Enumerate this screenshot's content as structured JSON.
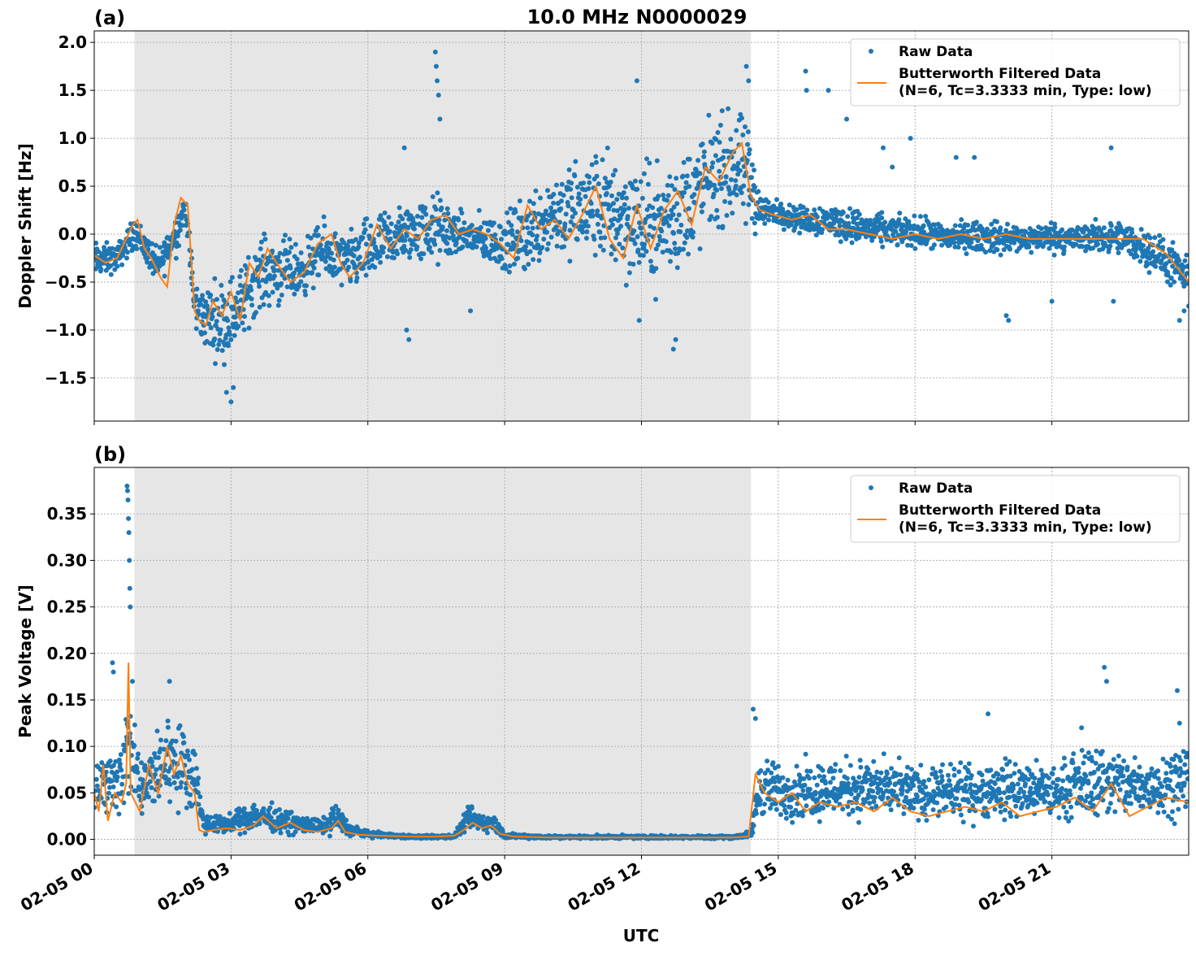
{
  "figure": {
    "title": "10.0 MHz N0000029",
    "xlabel": "UTC",
    "x_ticks": [
      "02-05 00",
      "02-05 03",
      "02-05 06",
      "02-05 09",
      "02-05 12",
      "02-05 15",
      "02-05 18",
      "02-05 21"
    ],
    "colors": {
      "raw": "#1f77b4",
      "filtered": "#ff7f0e",
      "night_shade": "#e6e6e6"
    }
  },
  "chart_data": [
    {
      "type": "scatter",
      "panel_label": "(a)",
      "ylabel": "Doppler Shift [Hz]",
      "xlim_hours": [
        0,
        24
      ],
      "ylim": [
        -1.95,
        2.12
      ],
      "y_ticks": [
        -1.5,
        -1.0,
        -0.5,
        0.0,
        0.5,
        1.0,
        1.5,
        2.0
      ],
      "y_tick_labels": [
        "−1.5",
        "−1.0",
        "−0.5",
        "0.0",
        "0.5",
        "1.0",
        "1.5",
        "2.0"
      ],
      "shaded_interval_hours": [
        0.88,
        14.4
      ],
      "grid": true,
      "legend_position": "top-right",
      "legend": {
        "raw": "Raw Data",
        "filtered_line1": "Butterworth Filtered Data",
        "filtered_line2": "(N=6, Tc=3.3333 min, Type: low)"
      },
      "series": [
        {
          "name": "Butterworth Filtered Data",
          "x_hours": [
            0.0,
            0.25,
            0.5,
            0.7,
            0.85,
            0.95,
            1.1,
            1.25,
            1.45,
            1.6,
            1.75,
            1.9,
            2.05,
            2.2,
            2.3,
            2.45,
            2.6,
            2.8,
            3.0,
            3.2,
            3.4,
            3.6,
            3.8,
            4.0,
            4.3,
            4.6,
            4.9,
            5.2,
            5.4,
            5.6,
            5.9,
            6.2,
            6.5,
            6.8,
            7.1,
            7.4,
            7.7,
            8.0,
            8.3,
            8.6,
            8.9,
            9.2,
            9.5,
            9.8,
            10.1,
            10.4,
            10.7,
            11.0,
            11.3,
            11.6,
            11.9,
            12.2,
            12.5,
            12.8,
            13.1,
            13.4,
            13.7,
            14.0,
            14.2,
            14.4,
            14.6,
            14.9,
            15.3,
            15.7,
            16.1,
            16.5,
            17.0,
            17.5,
            18.0,
            18.5,
            19.0,
            19.5,
            20.0,
            20.5,
            21.0,
            21.5,
            22.0,
            22.5,
            23.0,
            23.5,
            24.0
          ],
          "y": [
            -0.22,
            -0.3,
            -0.25,
            -0.05,
            0.1,
            0.15,
            -0.15,
            -0.25,
            -0.45,
            -0.55,
            0.1,
            0.38,
            0.3,
            -0.8,
            -0.9,
            -0.95,
            -0.7,
            -0.85,
            -0.6,
            -0.9,
            -0.3,
            -0.45,
            -0.15,
            -0.3,
            -0.5,
            -0.4,
            -0.1,
            0.0,
            -0.3,
            -0.45,
            -0.3,
            0.1,
            -0.15,
            0.05,
            -0.05,
            0.15,
            0.2,
            0.0,
            0.05,
            0.0,
            -0.1,
            -0.25,
            0.3,
            0.05,
            0.15,
            -0.05,
            0.2,
            0.5,
            -0.05,
            -0.25,
            0.3,
            -0.15,
            0.25,
            0.45,
            0.1,
            0.7,
            0.55,
            0.85,
            0.95,
            0.4,
            0.25,
            0.2,
            0.15,
            0.2,
            0.05,
            0.05,
            0.0,
            -0.05,
            0.0,
            -0.05,
            0.0,
            -0.05,
            0.0,
            -0.05,
            -0.05,
            -0.05,
            -0.05,
            -0.05,
            -0.05,
            -0.2,
            -0.5
          ]
        },
        {
          "name": "Raw Data",
          "band_x_hours": [
            0.0,
            0.5,
            0.9,
            1.4,
            1.8,
            2.0,
            2.2,
            2.4,
            2.8,
            3.2,
            3.6,
            4.0,
            4.5,
            5.0,
            5.5,
            6.0,
            6.5,
            7.0,
            7.5,
            8.0,
            8.5,
            9.0,
            9.5,
            10.0,
            10.5,
            11.0,
            11.5,
            12.0,
            12.5,
            13.0,
            13.5,
            14.0,
            14.4,
            14.6,
            15.0,
            15.5,
            16.0,
            16.5,
            17.0,
            17.5,
            18.0,
            18.5,
            19.0,
            19.5,
            20.0,
            20.5,
            21.0,
            21.5,
            22.0,
            22.5,
            23.0,
            23.5,
            24.0
          ],
          "band_low": [
            -0.55,
            -0.45,
            -0.2,
            -0.6,
            -0.3,
            0.1,
            -1.1,
            -1.3,
            -1.5,
            -1.3,
            -0.9,
            -0.9,
            -0.8,
            -0.6,
            -0.7,
            -0.7,
            -0.5,
            -0.4,
            -0.5,
            -0.3,
            -0.4,
            -0.5,
            -0.6,
            -0.4,
            -0.5,
            -0.5,
            -0.7,
            -0.8,
            -0.8,
            -0.6,
            -0.2,
            -0.1,
            -0.3,
            0.0,
            0.05,
            -0.05,
            -0.1,
            -0.15,
            -0.2,
            -0.2,
            -0.2,
            -0.25,
            -0.25,
            -0.25,
            -0.3,
            -0.25,
            -0.25,
            -0.25,
            -0.25,
            -0.3,
            -0.4,
            -0.6,
            -0.75
          ],
          "band_high": [
            0.0,
            -0.05,
            0.25,
            -0.1,
            0.35,
            0.5,
            -0.4,
            -0.4,
            -0.3,
            -0.2,
            0.1,
            0.15,
            0.0,
            0.25,
            0.1,
            0.3,
            0.4,
            0.45,
            0.6,
            0.3,
            0.3,
            0.3,
            0.6,
            0.85,
            0.95,
            1.1,
            1.15,
            0.95,
            1.0,
            1.2,
            1.4,
            1.5,
            1.4,
            0.5,
            0.4,
            0.35,
            0.4,
            0.35,
            0.3,
            0.25,
            0.25,
            0.2,
            0.2,
            0.2,
            0.2,
            0.15,
            0.2,
            0.15,
            0.2,
            0.2,
            0.15,
            0.05,
            -0.2
          ],
          "outlier_x_hours": [
            7.48,
            7.5,
            7.52,
            7.55,
            7.58,
            3.0,
            3.05,
            2.9,
            8.25,
            11.95,
            11.9,
            12.7,
            12.75,
            14.3,
            14.35,
            15.6,
            15.62,
            16.1,
            16.5,
            17.3,
            17.5,
            17.9,
            18.9,
            19.3,
            20.0,
            20.05,
            21.0,
            22.3,
            22.35,
            23.8,
            23.9,
            24.0,
            6.9,
            6.85,
            6.8
          ],
          "outlier_y": [
            1.9,
            1.75,
            1.6,
            1.45,
            1.2,
            -1.75,
            -1.6,
            -1.65,
            -0.8,
            -0.9,
            1.6,
            -1.2,
            -1.1,
            1.75,
            1.6,
            1.7,
            1.5,
            1.5,
            1.2,
            0.9,
            0.7,
            1.0,
            0.8,
            0.8,
            -0.85,
            -0.9,
            -0.7,
            0.9,
            -0.7,
            -0.9,
            -0.8,
            -0.75,
            -1.1,
            -1.0,
            0.9
          ]
        }
      ]
    },
    {
      "type": "scatter",
      "panel_label": "(b)",
      "ylabel": "Peak Voltage [V]",
      "xlim_hours": [
        0,
        24
      ],
      "ylim": [
        -0.017,
        0.4
      ],
      "y_ticks": [
        0.0,
        0.05,
        0.1,
        0.15,
        0.2,
        0.25,
        0.3,
        0.35
      ],
      "y_tick_labels": [
        "0.00",
        "0.05",
        "0.10",
        "0.15",
        "0.20",
        "0.25",
        "0.30",
        "0.35"
      ],
      "shaded_interval_hours": [
        0.88,
        14.4
      ],
      "grid": true,
      "legend_position": "top-right",
      "legend": {
        "raw": "Raw Data",
        "filtered_line1": "Butterworth Filtered Data",
        "filtered_line2": "(N=6, Tc=3.3333 min, Type: low)"
      },
      "series": [
        {
          "name": "Butterworth Filtered Data",
          "x_hours": [
            0.0,
            0.1,
            0.2,
            0.3,
            0.45,
            0.6,
            0.7,
            0.75,
            0.8,
            0.9,
            1.0,
            1.2,
            1.4,
            1.6,
            1.75,
            1.9,
            2.05,
            2.2,
            2.3,
            2.4,
            2.6,
            2.9,
            3.2,
            3.5,
            3.7,
            4.0,
            4.3,
            4.6,
            4.9,
            5.2,
            5.35,
            5.5,
            5.8,
            6.2,
            7.0,
            7.5,
            7.9,
            8.1,
            8.3,
            8.5,
            8.7,
            8.9,
            9.2,
            10.0,
            11.0,
            12.0,
            13.0,
            14.0,
            14.35,
            14.5,
            14.7,
            15.0,
            15.3,
            15.6,
            15.9,
            16.3,
            16.7,
            17.1,
            17.5,
            17.9,
            18.3,
            18.7,
            19.1,
            19.5,
            19.9,
            20.3,
            20.7,
            21.1,
            21.5,
            21.9,
            22.3,
            22.7,
            23.1,
            23.5,
            24.0
          ],
          "y": [
            0.05,
            0.03,
            0.08,
            0.02,
            0.05,
            0.04,
            0.06,
            0.19,
            0.05,
            0.04,
            0.03,
            0.08,
            0.05,
            0.1,
            0.07,
            0.09,
            0.06,
            0.05,
            0.01,
            0.008,
            0.01,
            0.012,
            0.01,
            0.015,
            0.025,
            0.012,
            0.018,
            0.01,
            0.008,
            0.012,
            0.02,
            0.008,
            0.005,
            0.004,
            0.003,
            0.003,
            0.004,
            0.01,
            0.018,
            0.012,
            0.015,
            0.006,
            0.003,
            0.002,
            0.002,
            0.002,
            0.002,
            0.002,
            0.003,
            0.07,
            0.05,
            0.04,
            0.05,
            0.03,
            0.04,
            0.035,
            0.04,
            0.03,
            0.045,
            0.03,
            0.025,
            0.03,
            0.035,
            0.03,
            0.04,
            0.025,
            0.03,
            0.035,
            0.045,
            0.03,
            0.06,
            0.025,
            0.035,
            0.045,
            0.04
          ]
        },
        {
          "name": "Raw Data",
          "band_x_hours": [
            0.0,
            0.3,
            0.6,
            0.8,
            1.0,
            1.3,
            1.6,
            1.9,
            2.2,
            2.4,
            3.0,
            3.5,
            4.0,
            4.5,
            5.0,
            5.3,
            5.6,
            6.0,
            7.0,
            7.9,
            8.2,
            8.5,
            8.8,
            9.0,
            10.0,
            12.0,
            14.0,
            14.4,
            14.6,
            15.0,
            16.0,
            17.0,
            18.0,
            19.0,
            20.0,
            21.0,
            22.0,
            23.0,
            24.0
          ],
          "band_low": [
            0.01,
            0.01,
            0.01,
            0.01,
            0.005,
            0.01,
            0.02,
            0.02,
            0.02,
            0.002,
            0.002,
            0.003,
            0.002,
            0.002,
            0.002,
            0.003,
            0.001,
            0.001,
            0.0,
            0.0,
            0.005,
            0.003,
            0.002,
            0.0,
            0.0,
            0.0,
            0.0,
            0.0,
            0.01,
            0.01,
            0.01,
            0.01,
            0.01,
            0.01,
            0.01,
            0.01,
            0.01,
            0.01,
            0.015
          ],
          "band_high": [
            0.12,
            0.1,
            0.14,
            0.2,
            0.1,
            0.12,
            0.16,
            0.14,
            0.12,
            0.03,
            0.03,
            0.05,
            0.04,
            0.03,
            0.025,
            0.045,
            0.02,
            0.01,
            0.005,
            0.006,
            0.04,
            0.035,
            0.03,
            0.008,
            0.005,
            0.005,
            0.005,
            0.01,
            0.11,
            0.09,
            0.1,
            0.1,
            0.09,
            0.09,
            0.1,
            0.09,
            0.12,
            0.1,
            0.12
          ],
          "outlier_x_hours": [
            0.72,
            0.73,
            0.74,
            0.75,
            0.76,
            0.77,
            0.78,
            0.79,
            0.4,
            0.42,
            1.65,
            14.45,
            14.5,
            19.6,
            21.65,
            22.15,
            22.2,
            23.75,
            23.8
          ],
          "outlier_y": [
            0.38,
            0.375,
            0.365,
            0.345,
            0.33,
            0.3,
            0.27,
            0.25,
            0.19,
            0.18,
            0.17,
            0.14,
            0.13,
            0.135,
            0.12,
            0.185,
            0.17,
            0.16,
            0.125
          ]
        }
      ]
    }
  ]
}
